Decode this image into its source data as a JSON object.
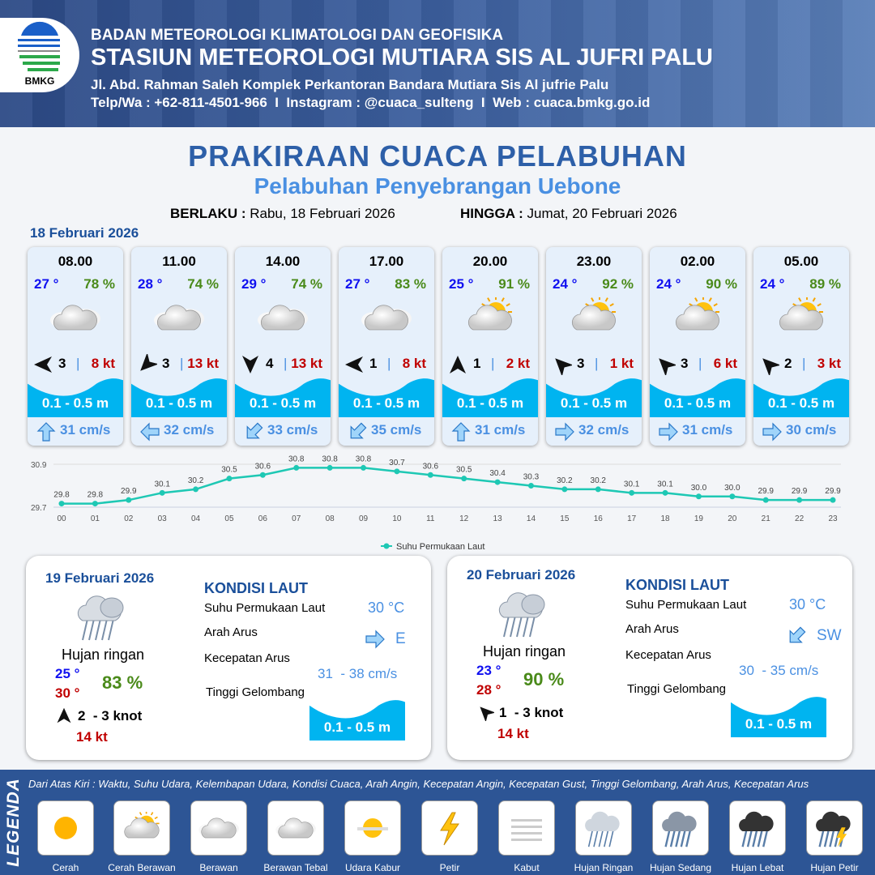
{
  "header": {
    "agency": "BADAN METEOROLOGI KLIMATOLOGI DAN GEOFISIKA",
    "station": "STASIUN METEOROLOGI MUTIARA SIS AL JUFRI PALU",
    "address": "Jl. Abd. Rahman Saleh Komplek Perkantoran Bandara Mutiara Sis Al jufrie Palu",
    "contact": "Telp/Wa : +62-811-4501-966  I  Instagram : @cuaca_sulteng  I  Web : cuaca.bmkg.go.id",
    "logo_text": "BMKG"
  },
  "title": "PRAKIRAAN CUACA PELABUHAN",
  "subtitle": "Pelabuhan Penyebrangan Uebone",
  "validity": {
    "from_label": "BERLAKU :",
    "from": "Rabu, 18 Februari 2026",
    "to_label": "HINGGA :",
    "to": "Jumat, 20 Februari 2026"
  },
  "day1": {
    "date": "18 Februari 2026",
    "cards": [
      {
        "time": "08.00",
        "temp": "27 °",
        "rh": "78 %",
        "weather": "Berawan Tebal",
        "wind_dir_deg": 270,
        "wind": "3",
        "gust": "8 kt",
        "wave": "0.1 - 0.5 m",
        "current_dir_deg": 0,
        "current": "31 cm/s"
      },
      {
        "time": "11.00",
        "temp": "28 °",
        "rh": "74 %",
        "weather": "Berawan Tebal",
        "wind_dir_deg": 225,
        "wind": "3",
        "gust": "13 kt",
        "wave": "0.1 - 0.5 m",
        "current_dir_deg": 270,
        "current": "32 cm/s"
      },
      {
        "time": "14.00",
        "temp": "29 °",
        "rh": "74 %",
        "weather": "Berawan Tebal",
        "wind_dir_deg": 180,
        "wind": "4",
        "gust": "13 kt",
        "wave": "0.1 - 0.5 m",
        "current_dir_deg": 225,
        "current": "33 cm/s"
      },
      {
        "time": "17.00",
        "temp": "27 °",
        "rh": "83 %",
        "weather": "Berawan Tebal",
        "wind_dir_deg": 270,
        "wind": "1",
        "gust": "8 kt",
        "wave": "0.1 - 0.5 m",
        "current_dir_deg": 225,
        "current": "35 cm/s"
      },
      {
        "time": "20.00",
        "temp": "25 °",
        "rh": "91 %",
        "weather": "Cerah Berawan",
        "wind_dir_deg": 0,
        "wind": "1",
        "gust": "2 kt",
        "wave": "0.1 - 0.5 m",
        "current_dir_deg": 0,
        "current": "31 cm/s"
      },
      {
        "time": "23.00",
        "temp": "24 °",
        "rh": "92 %",
        "weather": "Cerah Berawan",
        "wind_dir_deg": 315,
        "wind": "3",
        "gust": "1 kt",
        "wave": "0.1 - 0.5 m",
        "current_dir_deg": 90,
        "current": "32 cm/s"
      },
      {
        "time": "02.00",
        "temp": "24 °",
        "rh": "90 %",
        "weather": "Cerah Berawan",
        "wind_dir_deg": 315,
        "wind": "3",
        "gust": "6 kt",
        "wave": "0.1 - 0.5 m",
        "current_dir_deg": 90,
        "current": "31 cm/s"
      },
      {
        "time": "05.00",
        "temp": "24 °",
        "rh": "89 %",
        "weather": "Cerah Berawan",
        "wind_dir_deg": 315,
        "wind": "2",
        "gust": "3 kt",
        "wave": "0.1 - 0.5 m",
        "current_dir_deg": 90,
        "current": "30 cm/s"
      }
    ]
  },
  "chart_data": {
    "type": "line",
    "categories": [
      "00",
      "01",
      "02",
      "03",
      "04",
      "05",
      "06",
      "07",
      "08",
      "09",
      "10",
      "11",
      "12",
      "13",
      "14",
      "15",
      "16",
      "17",
      "18",
      "19",
      "20",
      "21",
      "22",
      "23"
    ],
    "series": [
      {
        "name": "Suhu Permukaan Laut",
        "values": [
          29.8,
          29.8,
          29.9,
          30.1,
          30.2,
          30.5,
          30.6,
          30.8,
          30.8,
          30.8,
          30.7,
          30.6,
          30.5,
          30.4,
          30.3,
          30.2,
          30.2,
          30.1,
          30.1,
          30.0,
          30.0,
          29.9,
          29.9,
          29.9
        ]
      }
    ],
    "ylim": [
      29.7,
      30.9
    ],
    "yticks": [
      "29.7",
      "30.9"
    ],
    "color": "#1ec8b4",
    "legend": "bottom",
    "grid": true
  },
  "day2": {
    "date": "19 Februari 2026",
    "weather": "Hujan ringan",
    "tmin": "25 °",
    "tmax": "30 °",
    "rh": "83 %",
    "wind": "2  - 3 knot",
    "wind_dir_deg": 0,
    "gust": "14 kt",
    "kondisi": "KONDISI LAUT",
    "sst_label": "Suhu Permukaan Laut",
    "sst": "30 °C",
    "arus_label": "Arah Arus",
    "arus": "E",
    "arus_deg": 90,
    "kec_label": "Kecepatan Arus",
    "kec": "31  - 38 cm/s",
    "tg_label": "Tinggi Gelombang",
    "tg": "0.1 - 0.5 m"
  },
  "day3": {
    "date": "20 Februari 2026",
    "weather": "Hujan ringan",
    "tmin": "23 °",
    "tmax": "28 °",
    "rh": "90 %",
    "wind": "1  - 3 knot",
    "wind_dir_deg": 315,
    "gust": "14 kt",
    "kondisi": "KONDISI LAUT",
    "sst_label": "Suhu Permukaan Laut",
    "sst": "30 °C",
    "arus_label": "Arah Arus",
    "arus": "SW",
    "arus_deg": 225,
    "kec_label": "Kecepatan Arus",
    "kec": "30  - 35 cm/s",
    "tg_label": "Tinggi Gelombang",
    "tg": "0.1 - 0.5 m"
  },
  "legend": {
    "title": "LEGENDA",
    "desc": "Dari Atas Kiri : Waktu, Suhu Udara, Kelembapan Udara, Kondisi Cuaca, Arah Angin, Kecepatan Angin, Kecepatan Gust, Tinggi Gelombang, Arah Arus, Kecepatan Arus",
    "items": [
      "Cerah",
      "Cerah Berawan",
      "Berawan",
      "Berawan Tebal",
      "Udara Kabur",
      "Petir",
      "Kabut",
      "Hujan Ringan",
      "Hujan Sedang",
      "Hujan Lebat",
      "Hujan Petir"
    ]
  },
  "colors": {
    "header": "#2c4a86",
    "title": "#2d5fa8",
    "subtitle": "#4a90e2",
    "wave": "#00b4f0",
    "temp": "#1010f0",
    "rh": "#4a8a1a",
    "gust": "#c00000"
  }
}
